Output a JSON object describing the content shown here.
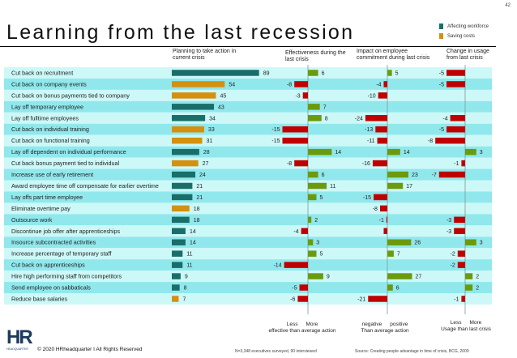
{
  "page_number": "42",
  "title": "Learning from the last recession",
  "legend": [
    {
      "label": "Affecting workforce",
      "color": "#1a6e6a"
    },
    {
      "label": "Saving costs",
      "color": "#d4900e"
    }
  ],
  "colors": {
    "positive": "#6b9a0e",
    "negative": "#c00000",
    "stripe_light": "#cdf8f8",
    "stripe_dark": "#90e8ec"
  },
  "chart_data": {
    "type": "bar",
    "column_headers": [
      "Planning to take action in current crisis",
      "Effectiveness during the last crisis",
      "Impact on employee commitment during last crisis",
      "Change in usage from last crisis"
    ],
    "categories": [
      "Cut back on recruitment",
      "Cut back on company events",
      "Cut back on bonus payments tied to company",
      "Lay off temporary employee",
      "Lay off fulltime employees",
      "Cut back on individual training",
      "Cut back on functional training",
      "Lay off dependent on individual performance",
      "Cut back bonus payment tied to individual",
      "Increase use of early retirement",
      "Award employee time off compensate for earlier overtime",
      "Lay offs part time employee",
      "Eliminate overtime pay",
      "Outsource work",
      "Discontinue job offer after apprenticeships",
      "Insource subcontracted activities",
      "Increase percentage of temporary staff",
      "Cut back on apprenticeships",
      "Hire high performing staff from competitors",
      "Send employee on sabbaticals",
      "Reduce base salaries"
    ],
    "planning_type": [
      "workforce",
      "cost",
      "cost",
      "workforce",
      "workforce",
      "cost",
      "cost",
      "workforce",
      "cost",
      "workforce",
      "workforce",
      "workforce",
      "cost",
      "workforce",
      "workforce",
      "workforce",
      "workforce",
      "workforce",
      "workforce",
      "workforce",
      "cost"
    ],
    "series": [
      {
        "name": "Planning to take action in current crisis",
        "values": [
          89,
          54,
          45,
          43,
          34,
          33,
          31,
          28,
          27,
          24,
          21,
          21,
          18,
          18,
          14,
          14,
          11,
          11,
          9,
          8,
          7
        ]
      },
      {
        "name": "Effectiveness during the last crisis",
        "values": [
          6,
          -8,
          -3,
          7,
          8,
          -15,
          -15,
          14,
          -8,
          6,
          11,
          5,
          null,
          2,
          -4,
          3,
          5,
          -14,
          9,
          -5,
          -6
        ]
      },
      {
        "name": "Impact on employee commitment during last crisis",
        "values": [
          5,
          -4,
          -10,
          null,
          -24,
          -13,
          -11,
          14,
          -16,
          23,
          17,
          -15,
          -8,
          -1,
          -4,
          26,
          7,
          null,
          27,
          6,
          -21
        ],
        "unlabeled": [
          14
        ]
      },
      {
        "name": "Change in usage from last crisis",
        "values": [
          -5,
          -5,
          null,
          null,
          -4,
          -5,
          -8,
          3,
          -1,
          -7,
          null,
          null,
          null,
          -3,
          -3,
          3,
          -2,
          -2,
          2,
          2,
          -1
        ]
      }
    ],
    "axis_notes": [
      {
        "left": "Less",
        "right": "More",
        "caption": "effective than average action"
      },
      {
        "left": "negative",
        "right": "positive",
        "caption": "Than average action"
      },
      {
        "left": "Less",
        "right": "More",
        "caption": "Usage than last crisis"
      }
    ]
  },
  "footer": {
    "copyright": "© 2020 HRheadquarter I  All Rights Reserved",
    "logo_text": "HR HEADQUARTER",
    "sample": "N=3,348 executives surveyed, 90 interviewed",
    "source": "Source: Creating people advantage in time of crisis, BCG, 2009"
  }
}
